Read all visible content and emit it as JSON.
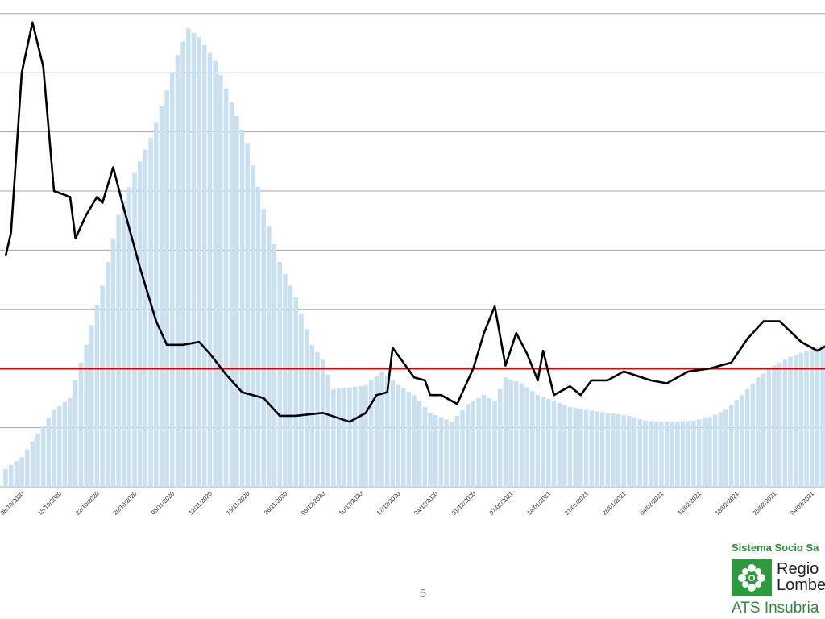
{
  "page_number": "5",
  "brand": {
    "system_text": "Sistema Socio Sa",
    "region_line1": "Regio",
    "region_line2": "Lombe",
    "ats_text": "ATS Insubria",
    "green": "#2e9a3e",
    "logo_icon": "lombardy-rose-icon"
  },
  "colors": {
    "bars": "#c9dff2",
    "line": "#000000",
    "threshold": "#e00000",
    "grid": "#a6a6a6"
  },
  "chart_data": {
    "type": "bar",
    "title": "",
    "xlabel": "",
    "ylabel": "",
    "ylim": [
      0,
      8
    ],
    "grid": true,
    "legend": "none",
    "x_tick_labels": [
      "08/10/2020",
      "15/10/2020",
      "22/10/2020",
      "29/10/2020",
      "05/11/2020",
      "12/11/2020",
      "19/11/2020",
      "26/11/2020",
      "03/12/2020",
      "10/12/2020",
      "17/12/2020",
      "24/12/2020",
      "31/12/2020",
      "07/01/2021",
      "14/01/2021",
      "21/01/2021",
      "28/01/2021",
      "04/02/2021",
      "11/02/2021",
      "18/02/2021",
      "25/02/2021",
      "04/03/2021",
      "11/03/2021"
    ],
    "threshold": 2,
    "series": [
      {
        "type": "bar",
        "anchors": [
          [
            "2020-10-05",
            0.3
          ],
          [
            "2020-10-08",
            0.5
          ],
          [
            "2020-10-11",
            0.9
          ],
          [
            "2020-10-14",
            1.3
          ],
          [
            "2020-10-17",
            1.5
          ],
          [
            "2020-10-20",
            2.4
          ],
          [
            "2020-10-23",
            3.4
          ],
          [
            "2020-10-26",
            4.6
          ],
          [
            "2020-10-29",
            5.3
          ],
          [
            "2020-11-01",
            5.9
          ],
          [
            "2020-11-04",
            6.7
          ],
          [
            "2020-11-06",
            7.3
          ],
          [
            "2020-11-08",
            7.75
          ],
          [
            "2020-11-10",
            7.6
          ],
          [
            "2020-11-13",
            7.2
          ],
          [
            "2020-11-16",
            6.5
          ],
          [
            "2020-11-19",
            5.8
          ],
          [
            "2020-11-22",
            4.7
          ],
          [
            "2020-11-25",
            3.8
          ],
          [
            "2020-11-28",
            3.2
          ],
          [
            "2020-12-01",
            2.4
          ],
          [
            "2020-12-03",
            2.15
          ],
          [
            "2020-12-05",
            1.65
          ],
          [
            "2020-12-08",
            1.68
          ],
          [
            "2020-12-11",
            1.72
          ],
          [
            "2020-12-14",
            1.95
          ],
          [
            "2020-12-17",
            1.72
          ],
          [
            "2020-12-20",
            1.55
          ],
          [
            "2020-12-23",
            1.25
          ],
          [
            "2020-12-27",
            1.1
          ],
          [
            "2020-12-30",
            1.4
          ],
          [
            "2021-01-02",
            1.55
          ],
          [
            "2021-01-04",
            1.45
          ],
          [
            "2021-01-06",
            1.85
          ],
          [
            "2021-01-09",
            1.75
          ],
          [
            "2021-01-12",
            1.55
          ],
          [
            "2021-01-15",
            1.45
          ],
          [
            "2021-01-18",
            1.35
          ],
          [
            "2021-01-21",
            1.3
          ],
          [
            "2021-01-25",
            1.25
          ],
          [
            "2021-01-29",
            1.2
          ],
          [
            "2021-02-01",
            1.12
          ],
          [
            "2021-02-04",
            1.1
          ],
          [
            "2021-02-07",
            1.1
          ],
          [
            "2021-02-10",
            1.12
          ],
          [
            "2021-02-13",
            1.18
          ],
          [
            "2021-02-16",
            1.3
          ],
          [
            "2021-02-19",
            1.55
          ],
          [
            "2021-02-22",
            1.85
          ],
          [
            "2021-02-25",
            2.05
          ],
          [
            "2021-02-28",
            2.2
          ],
          [
            "2021-03-03",
            2.3
          ],
          [
            "2021-03-06",
            2.4
          ],
          [
            "2021-03-09",
            2.7
          ],
          [
            "2021-03-12",
            2.6
          ]
        ]
      },
      {
        "type": "line",
        "anchors": [
          [
            "2020-10-05",
            3.9
          ],
          [
            "2020-10-06",
            4.3
          ],
          [
            "2020-10-08",
            7.0
          ],
          [
            "2020-10-10",
            7.85
          ],
          [
            "2020-10-12",
            7.1
          ],
          [
            "2020-10-14",
            5.0
          ],
          [
            "2020-10-17",
            4.9
          ],
          [
            "2020-10-18",
            4.2
          ],
          [
            "2020-10-20",
            4.6
          ],
          [
            "2020-10-22",
            4.9
          ],
          [
            "2020-10-23",
            4.8
          ],
          [
            "2020-10-25",
            5.4
          ],
          [
            "2020-10-27",
            4.7
          ],
          [
            "2020-10-30",
            3.7
          ],
          [
            "2020-11-02",
            2.8
          ],
          [
            "2020-11-04",
            2.4
          ],
          [
            "2020-11-07",
            2.4
          ],
          [
            "2020-11-10",
            2.45
          ],
          [
            "2020-11-12",
            2.25
          ],
          [
            "2020-11-15",
            1.9
          ],
          [
            "2020-11-18",
            1.6
          ],
          [
            "2020-11-22",
            1.5
          ],
          [
            "2020-11-25",
            1.2
          ],
          [
            "2020-11-28",
            1.2
          ],
          [
            "2020-12-03",
            1.25
          ],
          [
            "2020-12-08",
            1.1
          ],
          [
            "2020-12-11",
            1.25
          ],
          [
            "2020-12-13",
            1.55
          ],
          [
            "2020-12-15",
            1.6
          ],
          [
            "2020-12-16",
            2.35
          ],
          [
            "2020-12-18",
            2.1
          ],
          [
            "2020-12-20",
            1.85
          ],
          [
            "2020-12-22",
            1.8
          ],
          [
            "2020-12-23",
            1.55
          ],
          [
            "2020-12-25",
            1.55
          ],
          [
            "2020-12-28",
            1.4
          ],
          [
            "2020-12-30",
            1.8
          ],
          [
            "2020-12-31",
            2.0
          ],
          [
            "2021-01-02",
            2.6
          ],
          [
            "2021-01-04",
            3.05
          ],
          [
            "2021-01-06",
            2.05
          ],
          [
            "2021-01-08",
            2.6
          ],
          [
            "2021-01-10",
            2.25
          ],
          [
            "2021-01-12",
            1.8
          ],
          [
            "2021-01-13",
            2.3
          ],
          [
            "2021-01-15",
            1.55
          ],
          [
            "2021-01-18",
            1.7
          ],
          [
            "2021-01-20",
            1.55
          ],
          [
            "2021-01-22",
            1.8
          ],
          [
            "2021-01-25",
            1.8
          ],
          [
            "2021-01-28",
            1.95
          ],
          [
            "2021-02-02",
            1.8
          ],
          [
            "2021-02-05",
            1.75
          ],
          [
            "2021-02-09",
            1.95
          ],
          [
            "2021-02-13",
            2.0
          ],
          [
            "2021-02-17",
            2.1
          ],
          [
            "2021-02-20",
            2.5
          ],
          [
            "2021-02-23",
            2.8
          ],
          [
            "2021-02-26",
            2.8
          ],
          [
            "2021-03-02",
            2.45
          ],
          [
            "2021-03-05",
            2.3
          ],
          [
            "2021-03-08",
            2.45
          ],
          [
            "2021-03-10",
            2.35
          ],
          [
            "2021-03-12",
            2.0
          ]
        ]
      }
    ]
  }
}
